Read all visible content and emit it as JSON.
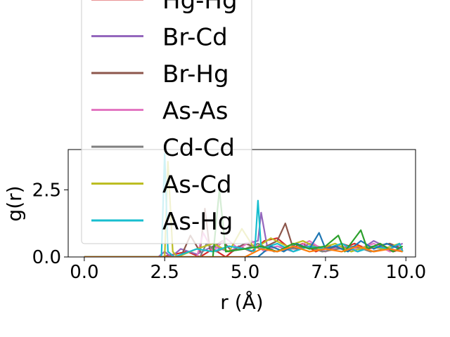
{
  "chart_data": {
    "type": "line",
    "title": "",
    "xlabel": "r (Å)",
    "ylabel": "g(r)",
    "xlim": [
      -0.5,
      10.3
    ],
    "ylim": [
      0,
      4.0
    ],
    "xticks": [
      0.0,
      2.5,
      5.0,
      7.5,
      10.0
    ],
    "xtick_labels": [
      "0.0",
      "2.5",
      "5.0",
      "7.5",
      "10.0"
    ],
    "yticks": [
      0.0,
      2.5
    ],
    "ytick_labels": [
      "0.0",
      "2.5"
    ],
    "grid": false,
    "legend_position": "upper-left, extending above the plot",
    "series": [
      {
        "name": "Hg-Hg",
        "color": "#d62728",
        "x": [
          0.0,
          2.4,
          3.2,
          3.6,
          4.0,
          4.4,
          4.8,
          5.2,
          5.6,
          6.0,
          6.4,
          6.8,
          7.2,
          7.6,
          8.0,
          8.4,
          8.8,
          9.2,
          9.6,
          9.9
        ],
        "y": [
          0.0,
          0.0,
          0.2,
          0.0,
          0.3,
          0.0,
          0.4,
          0.2,
          0.6,
          0.7,
          0.3,
          0.5,
          0.2,
          0.4,
          0.3,
          0.5,
          0.3,
          0.4,
          0.2,
          0.3
        ]
      },
      {
        "name": "Br-Cd",
        "color": "#9467bd",
        "x": [
          0.0,
          2.3,
          2.5,
          2.7,
          3.0,
          3.5,
          4.0,
          4.5,
          5.0,
          5.4,
          5.5,
          5.7,
          6.0,
          6.5,
          7.0,
          7.5,
          8.0,
          8.5,
          9.0,
          9.5,
          9.9
        ],
        "y": [
          0.0,
          0.0,
          0.2,
          0.0,
          0.3,
          0.1,
          0.4,
          0.2,
          0.5,
          0.6,
          1.65,
          0.3,
          0.4,
          0.2,
          0.5,
          0.3,
          0.4,
          0.2,
          0.6,
          0.3,
          0.5
        ]
      },
      {
        "name": "Br-Hg",
        "color": "#8c564b",
        "x": [
          0.0,
          3.0,
          3.3,
          3.6,
          3.75,
          3.9,
          4.3,
          4.6,
          5.0,
          5.5,
          6.0,
          6.25,
          6.5,
          7.0,
          7.5,
          8.0,
          8.5,
          9.0,
          9.5,
          9.9
        ],
        "y": [
          0.0,
          0.0,
          0.8,
          0.2,
          1.8,
          0.3,
          0.6,
          0.2,
          0.5,
          0.3,
          0.6,
          1.25,
          0.3,
          0.4,
          0.2,
          0.5,
          0.3,
          0.4,
          0.5,
          0.3
        ]
      },
      {
        "name": "As-As",
        "color": "#e377c2",
        "x": [
          0.0,
          3.5,
          3.7,
          4.0,
          4.4,
          4.8,
          5.2,
          5.6,
          6.0,
          6.5,
          7.0,
          7.5,
          8.0,
          8.5,
          9.0,
          9.5,
          9.9
        ],
        "y": [
          0.0,
          0.0,
          0.9,
          0.2,
          0.7,
          0.3,
          0.6,
          0.2,
          0.4,
          0.3,
          0.6,
          0.2,
          0.4,
          0.3,
          0.5,
          0.2,
          0.3
        ]
      },
      {
        "name": "Cd-Cd",
        "color": "#7f7f7f",
        "x": [
          0.0,
          3.6,
          3.8,
          4.1,
          4.5,
          5.0,
          5.4,
          5.9,
          6.4,
          6.9,
          7.4,
          7.9,
          8.4,
          8.9,
          9.4,
          9.9
        ],
        "y": [
          0.0,
          0.0,
          0.5,
          0.2,
          0.4,
          0.3,
          0.5,
          0.2,
          0.3,
          0.4,
          0.2,
          0.3,
          0.4,
          0.2,
          0.3,
          0.2
        ]
      },
      {
        "name": "As-Cd",
        "color": "#bcbd22",
        "x": [
          0.0,
          2.5,
          2.6,
          2.75,
          2.9,
          3.5,
          4.0,
          4.5,
          4.9,
          5.3,
          5.8,
          6.3,
          6.8,
          7.3,
          7.8,
          8.3,
          8.8,
          9.3,
          9.8,
          9.9
        ],
        "y": [
          0.0,
          0.0,
          3.55,
          0.2,
          0.0,
          0.3,
          0.5,
          0.2,
          1.05,
          0.3,
          0.7,
          0.4,
          0.6,
          0.3,
          0.5,
          0.2,
          0.4,
          0.3,
          0.5,
          0.2
        ]
      },
      {
        "name": "As-Hg",
        "color": "#17becf",
        "x": [
          0.0,
          2.4,
          2.5,
          2.6,
          2.8,
          3.5,
          4.0,
          4.5,
          5.0,
          5.3,
          5.4,
          5.5,
          6.0,
          6.5,
          7.0,
          7.5,
          8.0,
          8.5,
          9.0,
          9.5,
          9.8,
          9.9
        ],
        "y": [
          0.0,
          0.0,
          3.85,
          0.2,
          0.0,
          0.3,
          0.2,
          0.4,
          0.3,
          0.2,
          2.1,
          0.3,
          0.5,
          0.2,
          0.4,
          0.3,
          0.5,
          0.2,
          0.4,
          0.3,
          0.5,
          0.2
        ]
      },
      {
        "name": "",
        "color": "#1f77b4",
        "x": [
          0.0,
          5.4,
          5.8,
          6.2,
          6.6,
          7.0,
          7.3,
          7.5,
          7.8,
          8.2,
          8.6,
          9.0,
          9.4,
          9.8
        ],
        "y": [
          0.0,
          0.0,
          0.4,
          0.2,
          0.5,
          0.3,
          0.9,
          0.3,
          0.4,
          0.2,
          0.6,
          0.3,
          0.5,
          0.3
        ]
      },
      {
        "name": "",
        "color": "#2ca02c",
        "x": [
          0.0,
          4.0,
          4.2,
          4.4,
          5.0,
          5.5,
          6.0,
          6.5,
          7.0,
          7.5,
          7.9,
          8.1,
          8.6,
          8.8,
          9.2,
          9.6,
          9.9
        ],
        "y": [
          0.0,
          0.0,
          2.5,
          0.2,
          0.3,
          0.4,
          0.2,
          0.5,
          0.3,
          0.4,
          0.8,
          0.2,
          1.0,
          0.3,
          0.5,
          0.2,
          0.4
        ]
      },
      {
        "name": "",
        "color": "#ff7f0e",
        "x": [
          0.0,
          5.0,
          5.5,
          6.0,
          6.5,
          7.0,
          7.5,
          8.0,
          8.5,
          9.0,
          9.5,
          9.9
        ],
        "y": [
          0.0,
          0.0,
          0.3,
          0.2,
          0.4,
          0.2,
          0.3,
          0.2,
          0.4,
          0.2,
          0.3,
          0.2
        ]
      }
    ],
    "legend_entries": [
      {
        "label": "Hg-Hg",
        "color": "#d62728"
      },
      {
        "label": "Br-Cd",
        "color": "#9467bd"
      },
      {
        "label": "Br-Hg",
        "color": "#8c564b"
      },
      {
        "label": "As-As",
        "color": "#e377c2"
      },
      {
        "label": "Cd-Cd",
        "color": "#7f7f7f"
      },
      {
        "label": "As-Cd",
        "color": "#bcbd22"
      },
      {
        "label": "As-Hg",
        "color": "#17becf"
      }
    ]
  }
}
